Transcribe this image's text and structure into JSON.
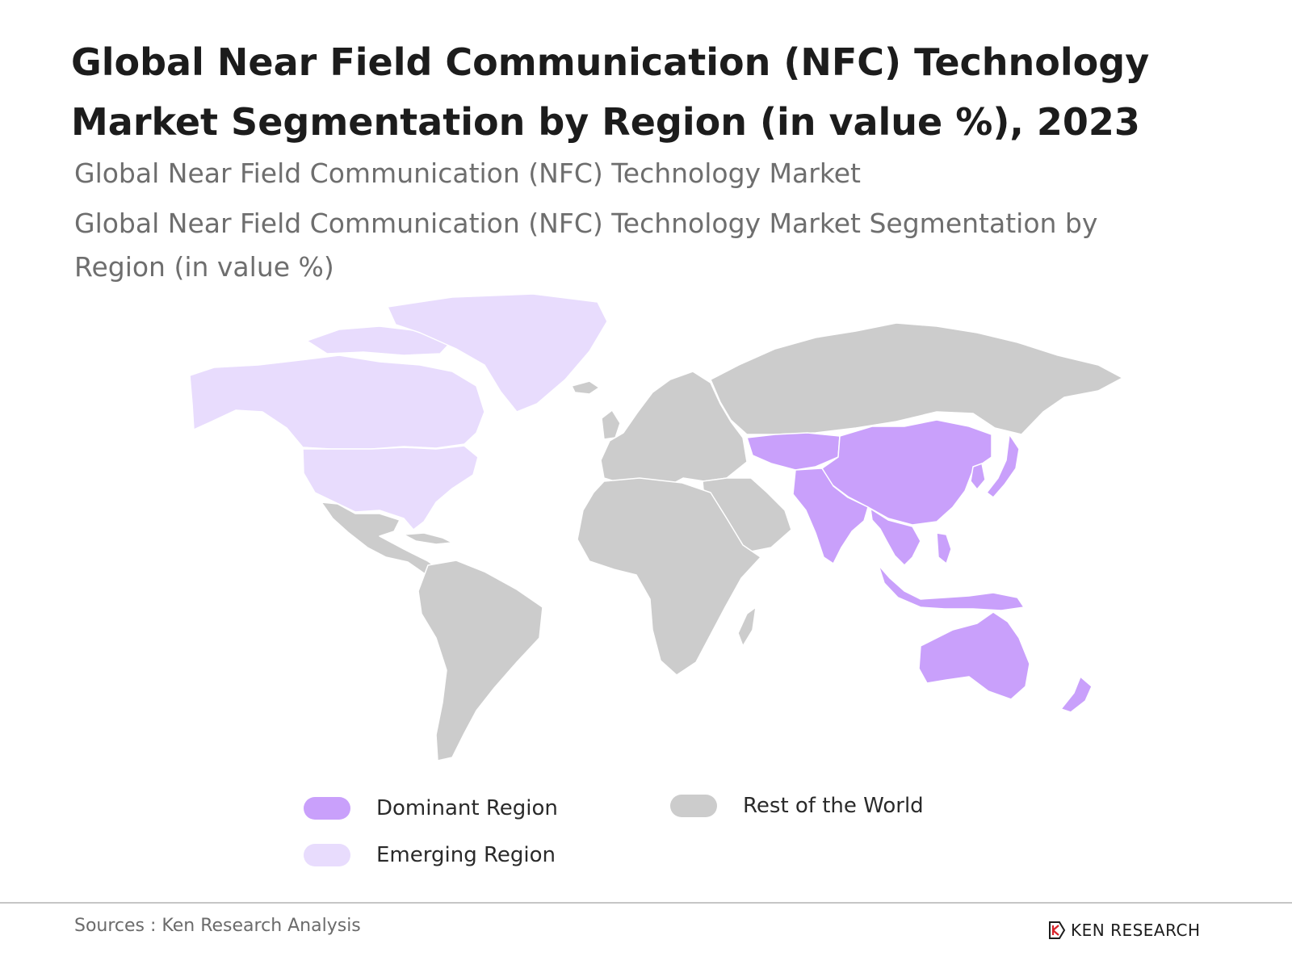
{
  "title": "Global Near Field Communication (NFC) Technology Market Segmentation by Region (in value %), 2023",
  "subtitle_1": "Global Near Field Communication (NFC) Technology Market",
  "subtitle_2": "Global Near Field Communication (NFC) Technology Market Segmentation by Region (in value %)",
  "legend": [
    {
      "label": "Dominant Region",
      "color": "#c9a0fb"
    },
    {
      "label": "Rest of the World",
      "color": "#cccccc"
    },
    {
      "label": "Emerging Region",
      "color": "#e8dcfd"
    }
  ],
  "colors": {
    "dominant": "#c9a0fb",
    "emerging": "#e8dcfd",
    "rest": "#cccccc",
    "borders": "#ffffff"
  },
  "regions": {
    "dominant": [
      "China",
      "India",
      "Japan",
      "South Korea",
      "Southeast Asia",
      "Australia",
      "New Zealand",
      "Central Asia"
    ],
    "emerging": [
      "Canada",
      "United States",
      "Greenland"
    ],
    "rest": [
      "Latin America",
      "Europe",
      "Russia",
      "Middle East",
      "Africa"
    ]
  },
  "footer": {
    "source": "Sources : Ken Research Analysis",
    "brand": "KEN RESEARCH",
    "logo_icon": "ken-research-logo-icon"
  }
}
